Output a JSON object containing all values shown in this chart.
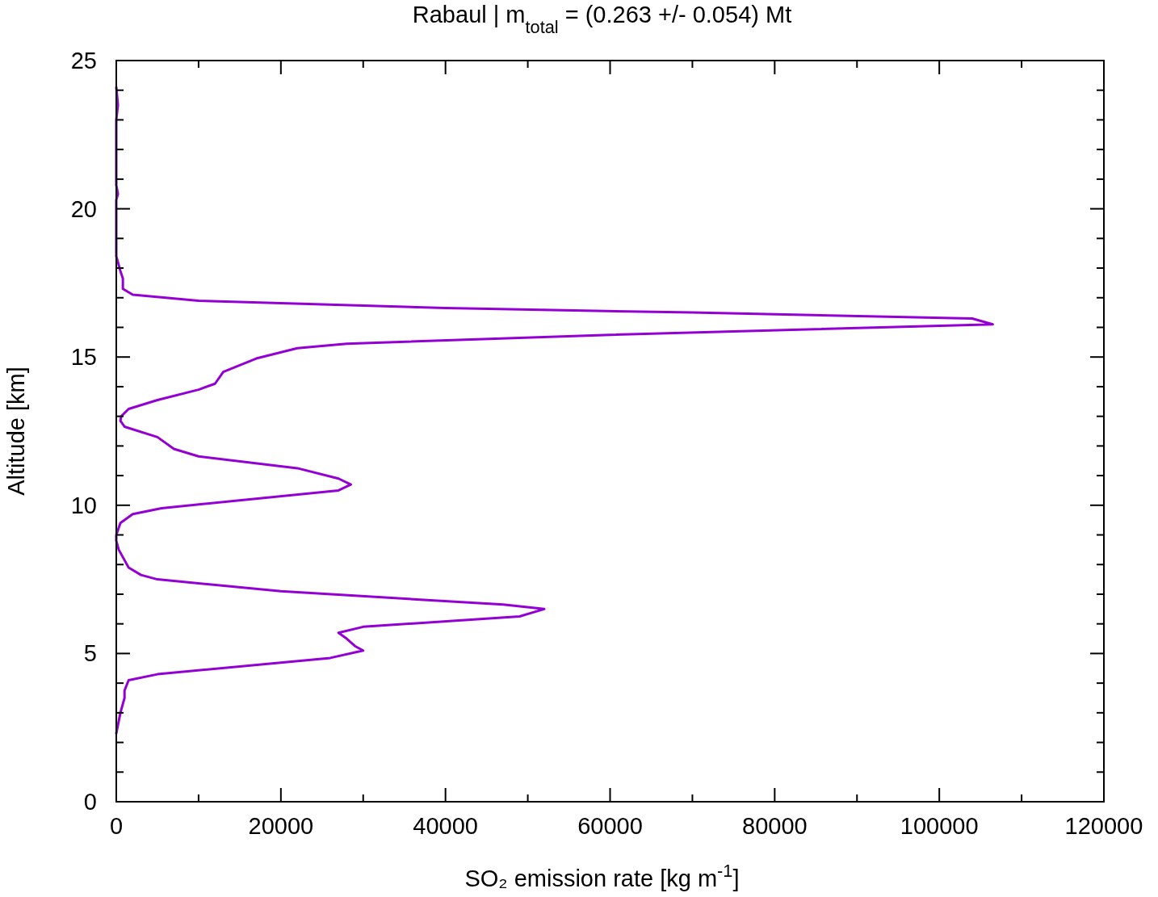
{
  "chart_data": {
    "type": "line",
    "title": "Rabaul | m$_{total}$ = (0.263 +/- 0.054) Mt",
    "xlabel": "SO₂ emission rate [kg m$^{-1}$]",
    "ylabel": "Altitude [km]",
    "series": [
      {
        "color": "#9400d3",
        "x": [
          0,
          500,
          1000,
          1000,
          1500,
          5000,
          26000,
          30000,
          29000,
          28000,
          27000,
          30000,
          49000,
          52000,
          47000,
          20000,
          5000,
          3000,
          1500,
          300,
          0,
          0,
          500,
          2000,
          5500,
          27000,
          28500,
          27000,
          22000,
          10000,
          7000,
          5000,
          1000,
          500,
          600,
          1500,
          5000,
          10000,
          12000,
          13000,
          17000,
          22000,
          28000,
          60000,
          106500,
          104000,
          70000,
          40000,
          10000,
          2000,
          800,
          800,
          500,
          0,
          0,
          200,
          0,
          0,
          200,
          0
        ],
        "values": [
          2.3,
          3.0,
          3.5,
          3.75,
          4.1,
          4.3,
          4.85,
          5.1,
          5.25,
          5.5,
          5.7,
          5.9,
          6.25,
          6.5,
          6.65,
          7.1,
          7.5,
          7.65,
          7.9,
          8.5,
          8.8,
          9.0,
          9.4,
          9.7,
          9.9,
          10.5,
          10.7,
          10.9,
          11.25,
          11.65,
          11.9,
          12.3,
          12.65,
          12.85,
          13.0,
          13.25,
          13.55,
          13.9,
          14.1,
          14.5,
          14.95,
          15.3,
          15.45,
          15.75,
          16.1,
          16.3,
          16.5,
          16.65,
          16.9,
          17.1,
          17.3,
          17.65,
          17.9,
          18.4,
          20.3,
          20.5,
          20.8,
          23.0,
          23.5,
          24.1
        ]
      }
    ],
    "xlim": [
      0,
      120000
    ],
    "ylim": [
      0,
      25
    ],
    "xticks": [
      0,
      {
        "value": 10000,
        "label": null
      },
      20000,
      {
        "value": 30000,
        "label": null
      },
      40000,
      {
        "value": 50000,
        "label": null
      },
      60000,
      {
        "value": 70000,
        "label": null
      },
      80000,
      {
        "value": 90000,
        "label": null
      },
      100000,
      {
        "value": 110000,
        "label": null
      },
      120000
    ],
    "yticks": [
      0,
      {
        "value": 1,
        "label": null
      },
      {
        "value": 2,
        "label": null
      },
      {
        "value": 3,
        "label": null
      },
      {
        "value": 4,
        "label": null
      },
      5,
      {
        "value": 6,
        "label": null
      },
      {
        "value": 7,
        "label": null
      },
      {
        "value": 8,
        "label": null
      },
      {
        "value": 9,
        "label": null
      },
      10,
      {
        "value": 11,
        "label": null
      },
      {
        "value": 12,
        "label": null
      },
      {
        "value": 13,
        "label": null
      },
      {
        "value": 14,
        "label": null
      },
      15,
      {
        "value": 16,
        "label": null
      },
      {
        "value": 17,
        "label": null
      },
      {
        "value": 18,
        "label": null
      },
      {
        "value": 19,
        "label": null
      },
      20,
      {
        "value": 21,
        "label": null
      },
      {
        "value": 22,
        "label": null
      },
      {
        "value": 23,
        "label": null
      },
      {
        "value": 24,
        "label": null
      },
      25
    ],
    "grid": false,
    "marker": "none",
    "line_style": "solid"
  }
}
